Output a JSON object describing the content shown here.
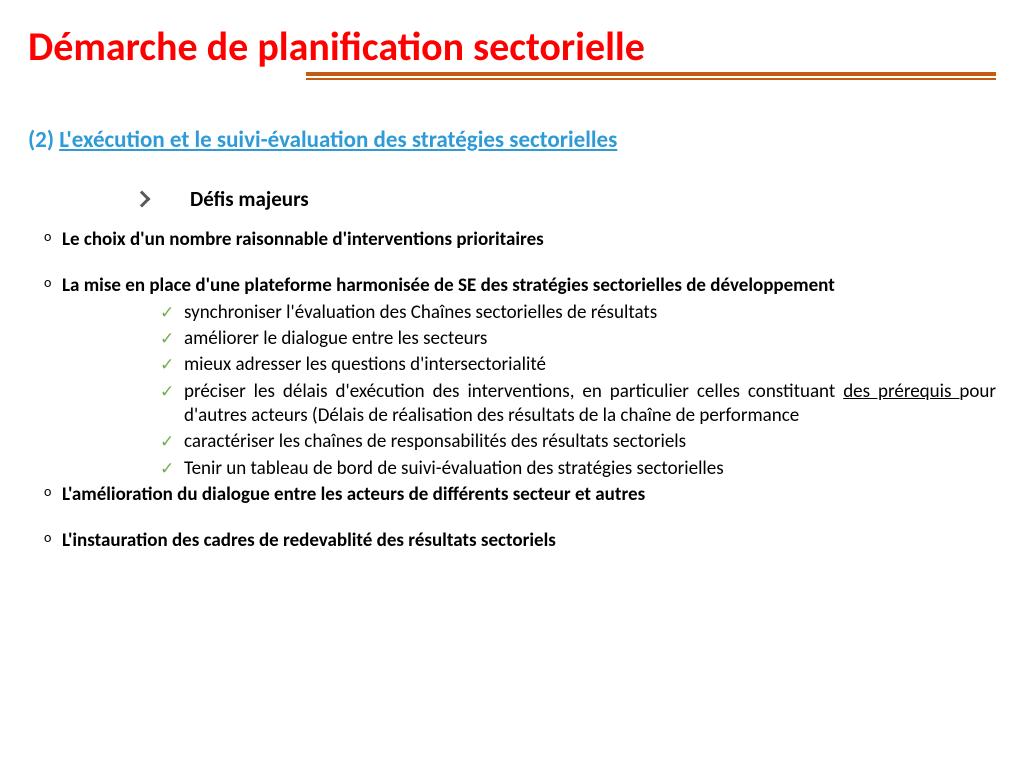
{
  "colors": {
    "title": "#ff0000",
    "rule": "#c55a11",
    "subtitle": "#2e9bd6",
    "body": "#000000",
    "chevron": "#595959",
    "check": "#70ad47"
  },
  "title": "Démarche de planification sectorielle",
  "subtitle_prefix": "(2) ",
  "subtitle_text": "L'exécution et le suivi-évaluation des stratégies sectorielles",
  "heading": "Défis majeurs",
  "items": [
    {
      "text": "Le choix d'un nombre raisonnable d'interventions prioritaires",
      "bold": true
    },
    {
      "text": "La mise en place d'une plateforme harmonisée de SE des stratégies sectorielles de développement",
      "bold": true,
      "sub": [
        "synchroniser l'évaluation des Chaînes sectorielles de résultats",
        "améliorer le dialogue entre les secteurs",
        "mieux adresser les questions d'intersectorialité",
        {
          "justify": true,
          "segments": [
            {
              "t": "préciser les délais  d'exécution des interventions, en particulier celles constituant "
            },
            {
              "t": "des prérequis ",
              "u": true
            },
            {
              "t": " pour d'autres acteurs (Délais de réalisation des résultats de la chaîne de performance"
            }
          ]
        },
        "caractériser les chaînes de responsabilités  des résultats sectoriels",
        "Tenir un tableau de bord de suivi-évaluation des stratégies sectorielles"
      ]
    },
    {
      "text": "L'amélioration du dialogue entre les acteurs de différents  secteur et autres",
      "bold": true
    },
    {
      "text": "L'instauration des cadres de redevablité des résultats sectoriels",
      "bold": true
    }
  ]
}
